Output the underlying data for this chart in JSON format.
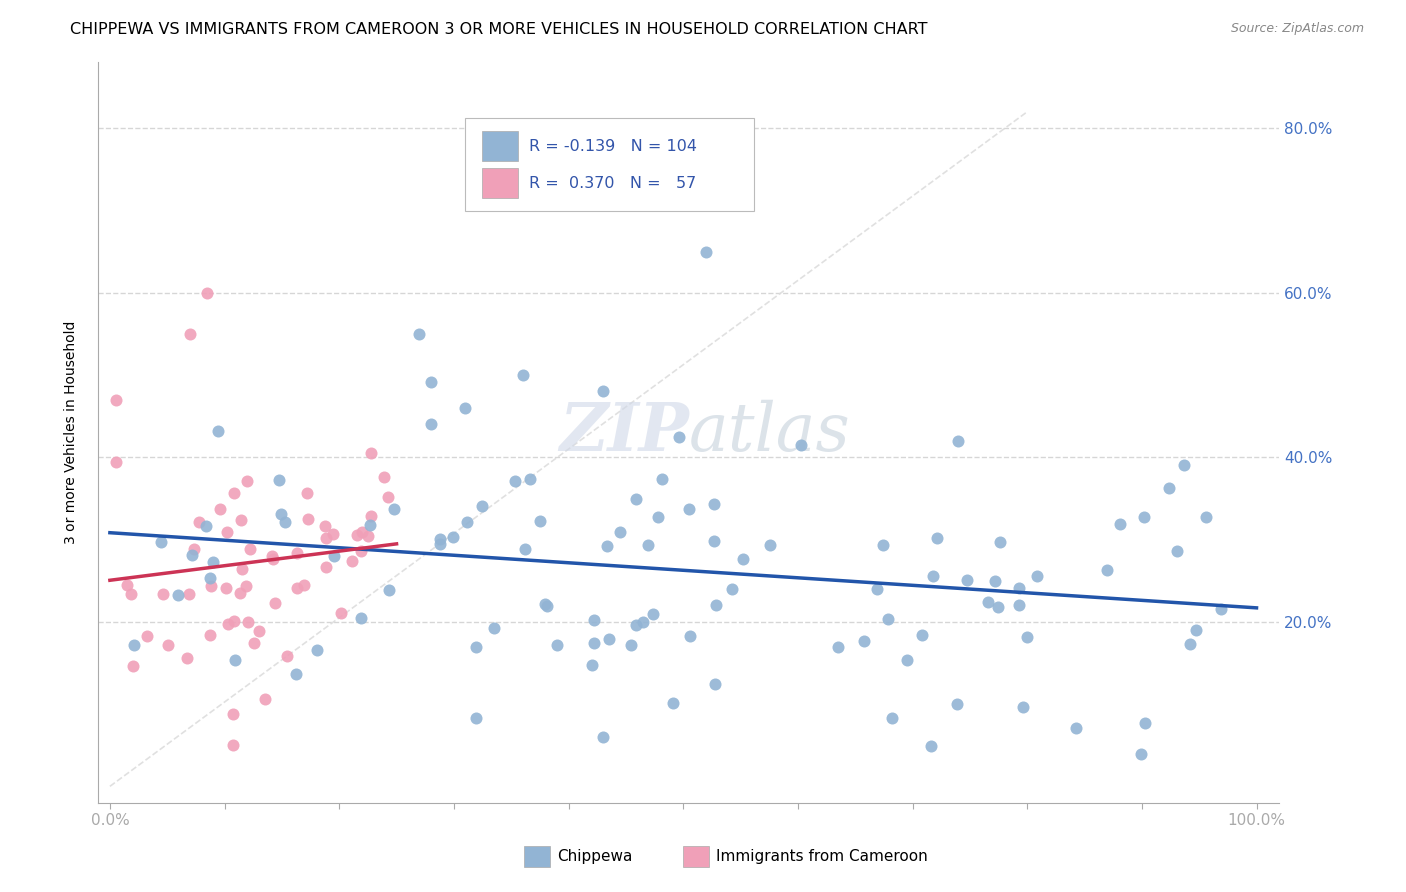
{
  "title": "CHIPPEWA VS IMMIGRANTS FROM CAMEROON 3 OR MORE VEHICLES IN HOUSEHOLD CORRELATION CHART",
  "source_text": "Source: ZipAtlas.com",
  "ylabel": "3 or more Vehicles in Household",
  "chippewa_color": "#92b4d4",
  "cameroon_color": "#f0a0b8",
  "trendline_chippewa_color": "#2255aa",
  "trendline_cameroon_color": "#cc3355",
  "diagonal_color": "#cccccc",
  "background_color": "#ffffff",
  "watermark": "ZIPatlas",
  "grid_color": "#cccccc",
  "title_fontsize": 11.5,
  "tick_label_color": "#4472c4",
  "ylabel_fontsize": 10,
  "source_fontsize": 9,
  "legend_fontsize": 11
}
